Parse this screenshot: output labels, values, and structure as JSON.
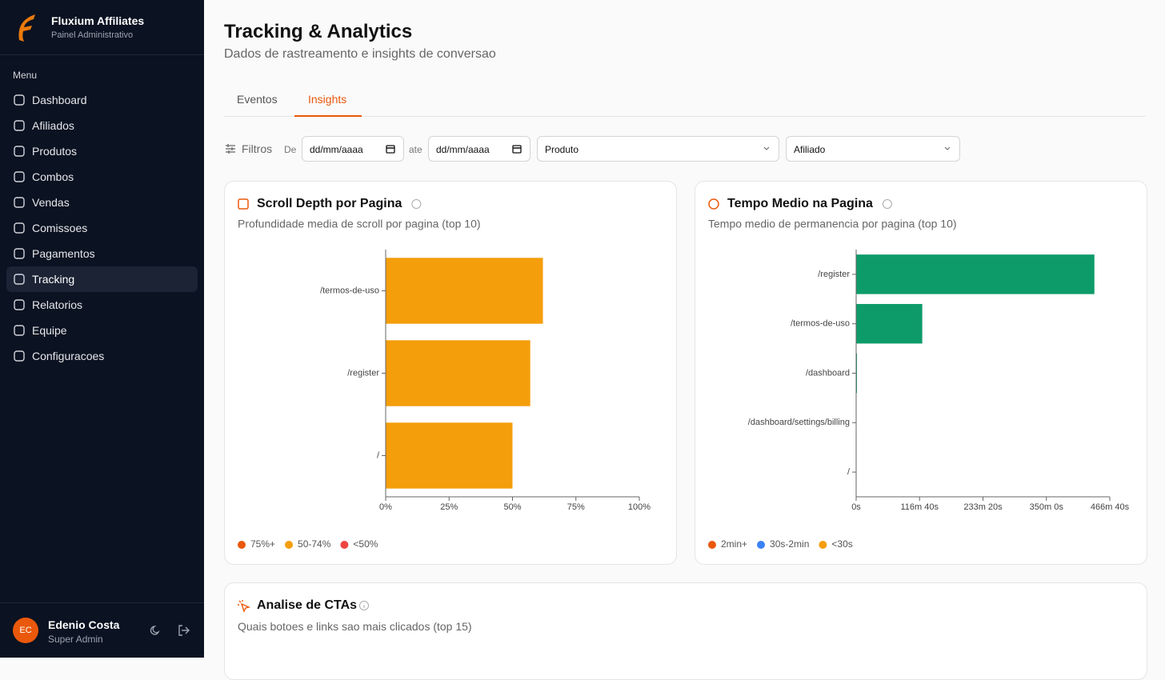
{
  "sidebar": {
    "brand": "Fluxium Affiliates",
    "subtitle": "Painel Administrativo",
    "menu_label": "Menu",
    "items": [
      "Dashboard",
      "Afiliados",
      "Produtos",
      "Combos",
      "Vendas",
      "Comissoes",
      "Pagamentos",
      "Tracking",
      "Relatorios",
      "Equipe",
      "Configuracoes"
    ],
    "active_item": 7,
    "user": {
      "initials": "EC",
      "name": "Edenio Costa",
      "role": "Super Admin"
    }
  },
  "header": {
    "title": "Tracking & Analytics",
    "subtitle": "Dados de rastreamento e insights de conversao"
  },
  "tabs": {
    "items": [
      "Eventos",
      "Insights"
    ],
    "active": 1
  },
  "filters": {
    "label": "Filtros",
    "from_label": "De",
    "date_placeholder": "dd/mm/aaaa",
    "to_label": "ate",
    "product": "Produto",
    "affiliate": "Afiliado"
  },
  "chart_data": [
    {
      "type": "hbar",
      "title": "Scroll Depth por Pagina",
      "subtitle": "Profundidade media de scroll por pagina (top 10)",
      "categories": [
        "/termos-de-uso",
        "/register",
        "/"
      ],
      "values": [
        62,
        57,
        50
      ],
      "color": "#f59e0b",
      "xlim": [
        0,
        100
      ],
      "xticks": [
        {
          "value": 0,
          "label": "0%"
        },
        {
          "value": 25,
          "label": "25%"
        },
        {
          "value": 50,
          "label": "50%"
        },
        {
          "value": 75,
          "label": "75%"
        },
        {
          "value": 100,
          "label": "100%"
        }
      ],
      "grid": false,
      "legend": [
        {
          "name": "75%+",
          "color": "#ea580c"
        },
        {
          "name": "50-74%",
          "color": "#f59e0b"
        },
        {
          "name": "<50%",
          "color": "#ef4444"
        }
      ]
    },
    {
      "type": "hbar",
      "title": "Tempo Medio na Pagina",
      "subtitle": "Tempo medio de permanencia por pagina (top 10)",
      "categories": [
        "/register",
        "/termos-de-uso",
        "/dashboard",
        "/dashboard/settings/billing",
        "/"
      ],
      "values": [
        26300,
        7300,
        90,
        40,
        5
      ],
      "color": "#0e9b6a",
      "xlim": [
        0,
        28000
      ],
      "xticks": [
        {
          "value": 0,
          "label": "0s"
        },
        {
          "value": 7000,
          "label": "116m 40s"
        },
        {
          "value": 14000,
          "label": "233m 20s"
        },
        {
          "value": 21000,
          "label": "350m 0s"
        },
        {
          "value": 28000,
          "label": "466m 40s"
        }
      ],
      "grid": false,
      "legend": [
        {
          "name": "2min+",
          "color": "#ea580c"
        },
        {
          "name": "30s-2min",
          "color": "#3b82f6"
        },
        {
          "name": "<30s",
          "color": "#f59e0b"
        }
      ]
    }
  ],
  "cta_card": {
    "title": "Analise de CTAs",
    "subtitle": "Quais botoes e links sao mais clicados (top 15)"
  }
}
